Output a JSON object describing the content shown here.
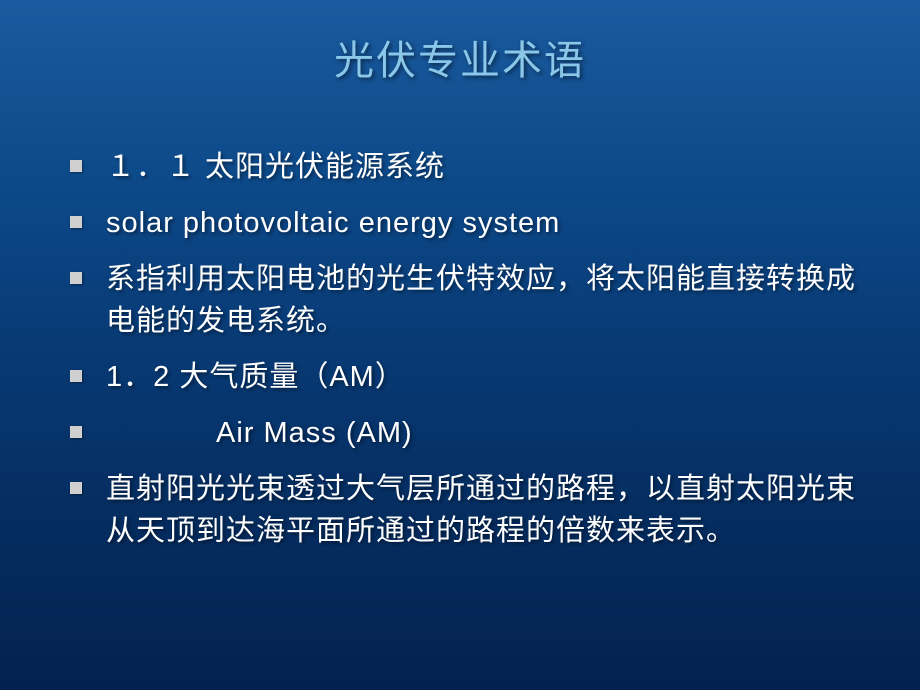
{
  "title": {
    "text": "光伏专业术语",
    "color": "#8ac7e8",
    "fontsize": 40
  },
  "items": [
    {
      "text": "１．１ 太阳光伏能源系统",
      "indent": false
    },
    {
      "text": "solar  photovoltaic  energy  system",
      "indent": false
    },
    {
      "text": "系指利用太阳电池的光生伏特效应，将太阳能直接转换成电能的发电系统。",
      "indent": false
    },
    {
      "text": "1．2    大气质量（AM）",
      "indent": false
    },
    {
      "text": "Air  Mass (AM)",
      "indent": true
    },
    {
      "text": "直射阳光光束透过大气层所通过的路程，以直射太阳光束从天顶到达海平面所通过的路程的倍数来表示。",
      "indent": false
    }
  ],
  "style": {
    "text_color": "#ffffff",
    "bullet_color": "#d0d0d0",
    "body_fontsize": 29,
    "background_gradient": [
      "#1a5a9e",
      "#032150"
    ]
  }
}
